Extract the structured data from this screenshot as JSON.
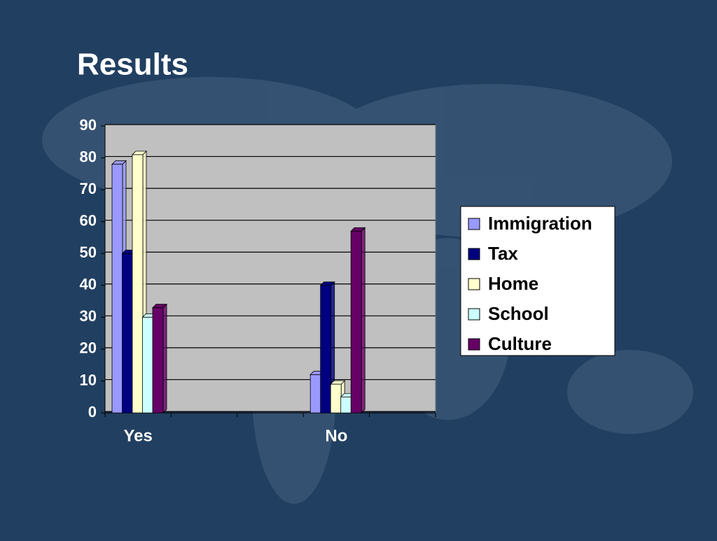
{
  "chart_data": {
    "type": "bar3d",
    "title": "Results",
    "categories": [
      "Yes",
      null,
      null,
      "No",
      null
    ],
    "series": [
      {
        "name": "Immigration",
        "color": "#9999ff",
        "values": [
          78,
          null,
          null,
          12,
          null
        ]
      },
      {
        "name": "Tax",
        "color": "#000080",
        "values": [
          50,
          null,
          null,
          40,
          null
        ]
      },
      {
        "name": "Home",
        "color": "#ffffcc",
        "values": [
          81,
          null,
          null,
          9,
          null
        ]
      },
      {
        "name": "School",
        "color": "#ccffff",
        "values": [
          30,
          null,
          null,
          5,
          null
        ]
      },
      {
        "name": "Culture",
        "color": "#660066",
        "values": [
          33,
          null,
          null,
          57,
          null
        ]
      }
    ],
    "ylim": [
      0,
      90
    ],
    "yticks": [
      0,
      10,
      20,
      30,
      40,
      50,
      60,
      70,
      80,
      90
    ],
    "grid": true,
    "legend": "right"
  }
}
